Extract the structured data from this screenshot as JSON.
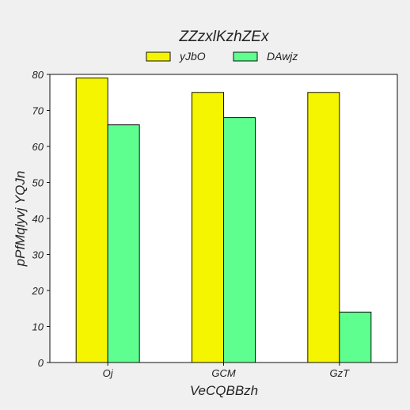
{
  "chart_data": {
    "type": "bar",
    "title": "ZZzxlKzhZEx",
    "xlabel": "VeCQBBzh",
    "ylabel": "pPfMqlyvj YQJn",
    "categories": [
      "Oj",
      "GCM",
      "GzT"
    ],
    "series": [
      {
        "name": "yJbO",
        "values": [
          79,
          75,
          75
        ],
        "color": "#f5f500"
      },
      {
        "name": "DAwjz",
        "values": [
          66,
          68,
          14
        ],
        "color": "#5fff8f"
      }
    ],
    "ylim": [
      0,
      80
    ],
    "yticks": [
      0,
      10,
      20,
      30,
      40,
      50,
      60,
      70,
      80
    ],
    "grid": false,
    "legend_position": "top-center"
  }
}
